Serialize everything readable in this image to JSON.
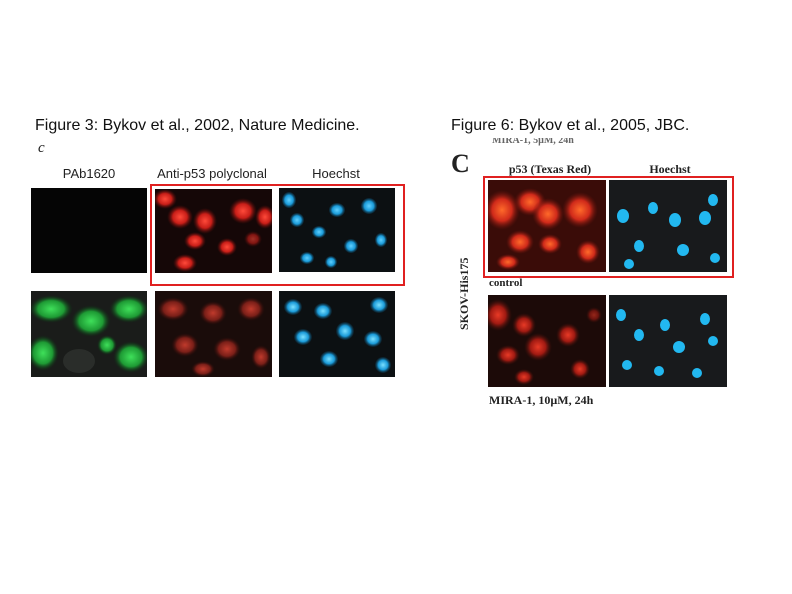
{
  "figure3": {
    "title": "Figure 3: Bykov et al.,  2002, Nature Medicine.",
    "panel_letter": "c",
    "columns": [
      "PAb1620",
      "Anti-p53 polyclonal",
      "Hoechst"
    ]
  },
  "figure6": {
    "title": "Figure 6: Bykov et al., 2005, JBC.",
    "panel_letter": "C",
    "columns": [
      "p53 (Texas Red)",
      "Hoechst"
    ],
    "top_cut_text": "MIRA-1, 5µM, 24h",
    "cell_line": "SKOV-His175",
    "row_labels": [
      "control",
      "MIRA-1, 10µM, 24h"
    ]
  },
  "colors": {
    "highlight_box": "#e02020",
    "red_stain": "#e8352a",
    "blue_stain": "#2aa8e0",
    "green_stain": "#2fc24a"
  }
}
